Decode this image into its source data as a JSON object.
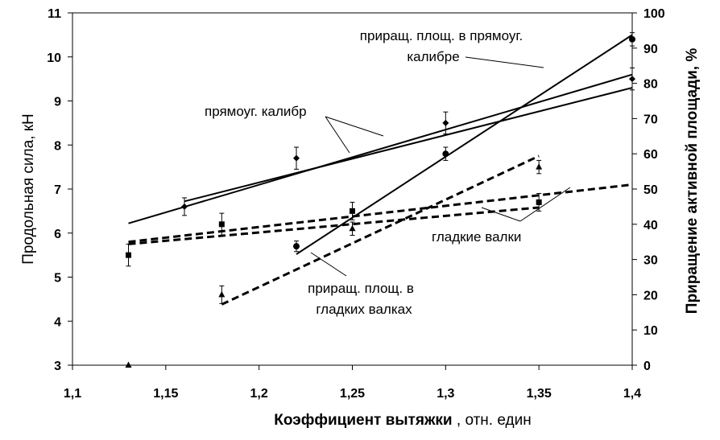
{
  "chart_data": {
    "type": "line",
    "xlabel_bold": "Коэффициент вытяжки",
    "xlabel_rest": " , отн. един",
    "ylabel_left": "Продольная сила, кН",
    "ylabel_right": "Приращение активной площади, %",
    "xlim": [
      1.1,
      1.4
    ],
    "ylim_left": [
      3,
      11
    ],
    "ylim_right": [
      0,
      100
    ],
    "x_ticks": [
      "1,1",
      "1,15",
      "1,2",
      "1,25",
      "1,3",
      "1,35",
      "1,4"
    ],
    "y_left_ticks": [
      "3",
      "4",
      "5",
      "6",
      "7",
      "8",
      "9",
      "10",
      "11"
    ],
    "y_right_ticks": [
      "0",
      "10",
      "20",
      "30",
      "40",
      "50",
      "60",
      "70",
      "80",
      "90",
      "100"
    ],
    "series": [
      {
        "id": "rect_force_points",
        "kind": "points",
        "marker": "diamond",
        "axis": "left",
        "points": [
          [
            1.16,
            6.6
          ],
          [
            1.22,
            7.7
          ],
          [
            1.3,
            8.5
          ],
          [
            1.4,
            9.5
          ]
        ],
        "errors": [
          0.2,
          0.25,
          0.25,
          0.25
        ]
      },
      {
        "id": "rect_area_points",
        "kind": "points",
        "marker": "circle",
        "axis": "left",
        "points": [
          [
            1.22,
            5.7
          ],
          [
            1.3,
            7.8
          ],
          [
            1.4,
            10.4
          ]
        ],
        "errors": [
          0.12,
          0.15,
          0.15
        ]
      },
      {
        "id": "smooth_force_points",
        "kind": "points",
        "marker": "square",
        "axis": "left",
        "points": [
          [
            1.13,
            5.5
          ],
          [
            1.18,
            6.2
          ],
          [
            1.25,
            6.5
          ],
          [
            1.35,
            6.7
          ]
        ],
        "errors": [
          0.25,
          0.25,
          0.2,
          0.2
        ]
      },
      {
        "id": "smooth_area_points",
        "kind": "points",
        "marker": "triangle",
        "axis": "left",
        "points": [
          [
            1.13,
            3.0
          ],
          [
            1.18,
            4.6
          ],
          [
            1.25,
            6.1
          ],
          [
            1.35,
            7.5
          ]
        ],
        "errors": [
          0.0,
          0.2,
          0.15,
          0.15
        ]
      },
      {
        "id": "rect_force_fit_1",
        "kind": "line",
        "dash": false,
        "axis": "left",
        "points": [
          [
            1.13,
            6.22
          ],
          [
            1.4,
            9.6
          ]
        ]
      },
      {
        "id": "rect_force_fit_2",
        "kind": "line",
        "dash": false,
        "axis": "left",
        "points": [
          [
            1.16,
            6.72
          ],
          [
            1.4,
            9.3
          ]
        ]
      },
      {
        "id": "rect_area_fit",
        "kind": "line",
        "dash": false,
        "axis": "left",
        "points": [
          [
            1.22,
            5.52
          ],
          [
            1.4,
            10.5
          ]
        ]
      },
      {
        "id": "smooth_force_fit_1",
        "kind": "line",
        "dash": true,
        "axis": "left",
        "points": [
          [
            1.13,
            5.8
          ],
          [
            1.4,
            7.1
          ]
        ]
      },
      {
        "id": "smooth_force_fit_2",
        "kind": "line",
        "dash": true,
        "axis": "left",
        "points": [
          [
            1.13,
            5.75
          ],
          [
            1.35,
            6.58
          ]
        ]
      },
      {
        "id": "smooth_area_fit",
        "kind": "line",
        "dash": true,
        "axis": "left",
        "points": [
          [
            1.18,
            4.38
          ],
          [
            1.35,
            7.75
          ]
        ]
      }
    ],
    "annotations": [
      {
        "id": "ann-rect-area",
        "lines": [
          "приращ. площ. в прямоуг.",
          "калибре"
        ]
      },
      {
        "id": "ann-rect-caliber",
        "lines": [
          "прямоуг. калибр"
        ]
      },
      {
        "id": "ann-smooth-rolls",
        "lines": [
          "гладкие валки"
        ]
      },
      {
        "id": "ann-smooth-area",
        "lines": [
          "приращ. площ. в",
          "гладких валках"
        ]
      }
    ]
  }
}
